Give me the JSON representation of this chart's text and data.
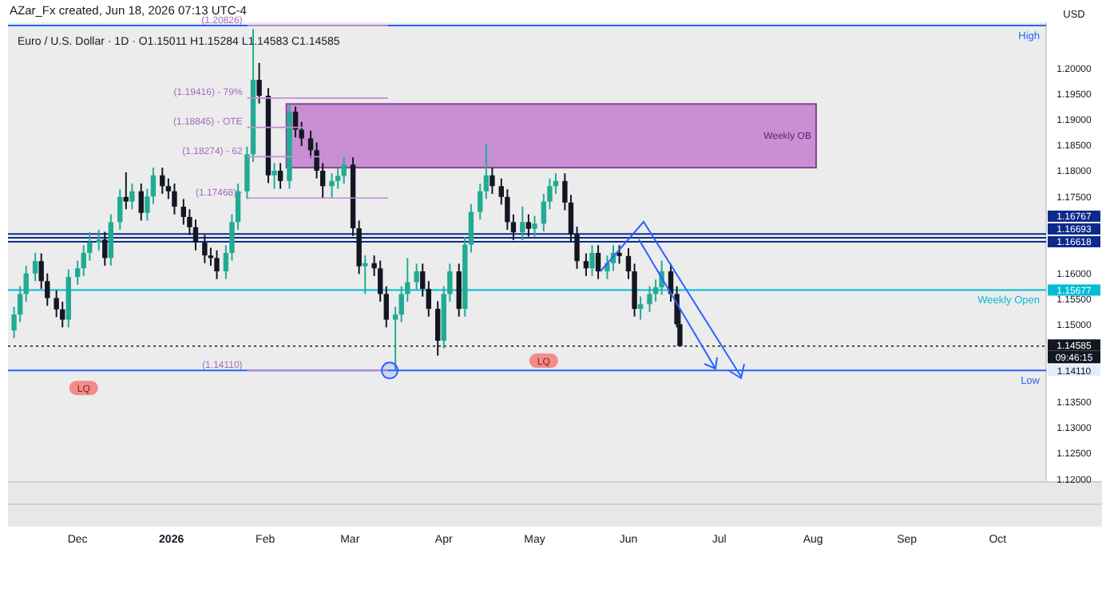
{
  "chart_data": {
    "type": "candlestick",
    "title": "Euro / U.S. Dollar · 1D · O1.15011 H1.15284 L1.14583 C1.14585",
    "subtitle": "AZar_Fx created, Jun 18, 2026 07:13 UTC-4",
    "ylabel": "USD",
    "colors": [
      "#22ab94",
      "#22ab94",
      "#22ab94",
      "#22ab94",
      "#131722",
      "#131722",
      "#131722",
      "#131722",
      "#22ab94",
      "#22ab94",
      "#22ab94",
      "#22ab94",
      "#22ab94",
      "#131722",
      "#22ab94",
      "#22ab94",
      "#131722",
      "#22ab94",
      "#131722",
      "#22ab94",
      "#22ab94",
      "#131722",
      "#131722",
      "#131722",
      "#131722",
      "#131722",
      "#131722",
      "#131722",
      "#131722",
      "#131722",
      "#22ab94",
      "#22ab94",
      "#22ab94",
      "#22ab94",
      "#22ab94",
      "#131722",
      "#131722",
      "#22ab94",
      "#131722",
      "#22ab94",
      "#131722",
      "#131722",
      "#131722",
      "#131722",
      "#131722",
      "#22ab94",
      "#22ab94",
      "#22ab94",
      "#131722",
      "#131722",
      "#22ab94",
      "#131722",
      "#131722",
      "#131722",
      "#22ab94",
      "#22ab94",
      "#22ab94",
      "#22ab94",
      "#131722",
      "#131722",
      "#131722",
      "#22ab94",
      "#22ab94",
      "#131722",
      "#22ab94",
      "#22ab94",
      "#22ab94",
      "#22ab94",
      "#131722",
      "#131722",
      "#131722",
      "#131722",
      "#22ab94",
      "#131722",
      "#22ab94",
      "#22ab94",
      "#22ab94",
      "#22ab94",
      "#131722",
      "#131722",
      "#131722",
      "#131722",
      "#22ab94",
      "#131722",
      "#22ab94",
      "#22ab94",
      "#131722",
      "#131722",
      "#131722",
      "#22ab94",
      "#22ab94",
      "#22ab94",
      "#22ab94",
      "#131722",
      "#131722",
      "#131722"
    ],
    "x": [
      "2025-11-10",
      "2025-11-12",
      "2025-11-14",
      "2025-11-17",
      "2025-11-19",
      "2025-11-21",
      "2025-11-24",
      "2025-11-26",
      "2025-11-28",
      "2025-12-01",
      "2025-12-03",
      "2025-12-05",
      "2025-12-08",
      "2025-12-10",
      "2025-12-12",
      "2025-12-15",
      "2025-12-17",
      "2025-12-19",
      "2025-12-22",
      "2025-12-24",
      "2025-12-26",
      "2025-12-29",
      "2025-12-31",
      "2026-01-02",
      "2026-01-05",
      "2026-01-07",
      "2026-01-09",
      "2026-01-12",
      "2026-01-14",
      "2026-01-16",
      "2026-01-19",
      "2026-01-21",
      "2026-01-23",
      "2026-01-26",
      "2026-01-28",
      "2026-01-30",
      "2026-02-02",
      "2026-02-04",
      "2026-02-06",
      "2026-02-09",
      "2026-02-11",
      "2026-02-13",
      "2026-02-16",
      "2026-02-18",
      "2026-02-20",
      "2026-02-23",
      "2026-02-25",
      "2026-02-27",
      "2026-03-02",
      "2026-03-04",
      "2026-03-06",
      "2026-03-09",
      "2026-03-11",
      "2026-03-13",
      "2026-03-16",
      "2026-03-18",
      "2026-03-20",
      "2026-03-23",
      "2026-03-25",
      "2026-03-27",
      "2026-03-30",
      "2026-04-01",
      "2026-04-03",
      "2026-04-06",
      "2026-04-08",
      "2026-04-10",
      "2026-04-13",
      "2026-04-15",
      "2026-04-17",
      "2026-04-20",
      "2026-04-22",
      "2026-04-24",
      "2026-04-27",
      "2026-04-29",
      "2026-05-01",
      "2026-05-04",
      "2026-05-06",
      "2026-05-08",
      "2026-05-11",
      "2026-05-13",
      "2026-05-15",
      "2026-05-18",
      "2026-05-20",
      "2026-05-22",
      "2026-05-25",
      "2026-05-27",
      "2026-05-29",
      "2026-06-01",
      "2026-06-03",
      "2026-06-05",
      "2026-06-08",
      "2026-06-10",
      "2026-06-12",
      "2026-06-15",
      "2026-06-17",
      "2026-06-18"
    ],
    "ohlc": [
      [
        1.1489,
        1.1535,
        1.1474,
        1.152
      ],
      [
        1.152,
        1.1575,
        1.1505,
        1.156
      ],
      [
        1.156,
        1.1615,
        1.1545,
        1.16
      ],
      [
        1.16,
        1.164,
        1.1585,
        1.1624
      ],
      [
        1.1624,
        1.1639,
        1.157,
        1.1585
      ],
      [
        1.1585,
        1.16,
        1.1537,
        1.1552
      ],
      [
        1.1552,
        1.1567,
        1.1515,
        1.153
      ],
      [
        1.153,
        1.1545,
        1.1495,
        1.151
      ],
      [
        1.151,
        1.1608,
        1.1495,
        1.1593
      ],
      [
        1.1593,
        1.1625,
        1.1578,
        1.161
      ],
      [
        1.161,
        1.1655,
        1.1595,
        1.164
      ],
      [
        1.164,
        1.168,
        1.1625,
        1.166
      ],
      [
        1.166,
        1.1685,
        1.1645,
        1.1666
      ],
      [
        1.1666,
        1.1681,
        1.1615,
        1.163
      ],
      [
        1.163,
        1.1715,
        1.1615,
        1.17
      ],
      [
        1.17,
        1.1764,
        1.1685,
        1.1749
      ],
      [
        1.1749,
        1.1797,
        1.1725,
        1.174
      ],
      [
        1.174,
        1.1775,
        1.1725,
        1.176
      ],
      [
        1.176,
        1.1775,
        1.1703,
        1.1718
      ],
      [
        1.1718,
        1.1765,
        1.1703,
        1.175
      ],
      [
        1.175,
        1.1806,
        1.1735,
        1.1791
      ],
      [
        1.1791,
        1.1806,
        1.1755,
        1.177
      ],
      [
        1.177,
        1.1785,
        1.1745,
        1.176
      ],
      [
        1.176,
        1.1775,
        1.1715,
        1.173
      ],
      [
        1.173,
        1.1745,
        1.1695,
        1.171
      ],
      [
        1.171,
        1.1725,
        1.1675,
        1.169
      ],
      [
        1.169,
        1.1705,
        1.1645,
        1.166
      ],
      [
        1.166,
        1.1675,
        1.162,
        1.1635
      ],
      [
        1.1635,
        1.165,
        1.1615,
        1.163
      ],
      [
        1.163,
        1.1645,
        1.1589,
        1.1604
      ],
      [
        1.1604,
        1.1655,
        1.1589,
        1.164
      ],
      [
        1.164,
        1.1715,
        1.1625,
        1.17
      ],
      [
        1.17,
        1.1775,
        1.1685,
        1.176
      ],
      [
        1.176,
        1.1847,
        1.1745,
        1.1832
      ],
      [
        1.1832,
        1.2076,
        1.1817,
        1.1977
      ],
      [
        1.1977,
        1.201,
        1.1931,
        1.1946
      ],
      [
        1.1946,
        1.1961,
        1.1776,
        1.1791
      ],
      [
        1.1791,
        1.1815,
        1.1765,
        1.18
      ],
      [
        1.18,
        1.1815,
        1.1765,
        1.178
      ],
      [
        1.178,
        1.193,
        1.1765,
        1.1915
      ],
      [
        1.1915,
        1.1925,
        1.1865,
        1.188
      ],
      [
        1.188,
        1.1895,
        1.1848,
        1.1863
      ],
      [
        1.1863,
        1.1878,
        1.1825,
        1.184
      ],
      [
        1.184,
        1.1855,
        1.1785,
        1.18
      ],
      [
        1.18,
        1.1815,
        1.1747,
        1.177
      ],
      [
        1.177,
        1.1795,
        1.1747,
        1.178
      ],
      [
        1.178,
        1.1805,
        1.1765,
        1.179
      ],
      [
        1.179,
        1.1827,
        1.1775,
        1.1812
      ],
      [
        1.1812,
        1.1827,
        1.1673,
        1.1688
      ],
      [
        1.1688,
        1.1703,
        1.1599,
        1.1614
      ],
      [
        1.1614,
        1.1635,
        1.156,
        1.162
      ],
      [
        1.162,
        1.1635,
        1.1595,
        1.161
      ],
      [
        1.161,
        1.1625,
        1.1545,
        1.156
      ],
      [
        1.156,
        1.1575,
        1.1495,
        1.151
      ],
      [
        1.151,
        1.1535,
        1.1411,
        1.152
      ],
      [
        1.152,
        1.1575,
        1.1505,
        1.156
      ],
      [
        1.156,
        1.163,
        1.1545,
        1.1583
      ],
      [
        1.1583,
        1.1619,
        1.1568,
        1.1604
      ],
      [
        1.1604,
        1.1619,
        1.1555,
        1.157
      ],
      [
        1.157,
        1.1585,
        1.1516,
        1.1531
      ],
      [
        1.1531,
        1.1546,
        1.144,
        1.1469
      ],
      [
        1.1469,
        1.1575,
        1.1454,
        1.156
      ],
      [
        1.156,
        1.1619,
        1.1545,
        1.1604
      ],
      [
        1.1604,
        1.1619,
        1.1516,
        1.1531
      ],
      [
        1.1531,
        1.1671,
        1.1516,
        1.1656
      ],
      [
        1.1656,
        1.1735,
        1.1641,
        1.172
      ],
      [
        1.172,
        1.1775,
        1.1705,
        1.176
      ],
      [
        1.176,
        1.1853,
        1.1745,
        1.1791
      ],
      [
        1.1791,
        1.1806,
        1.1755,
        1.177
      ],
      [
        1.177,
        1.1785,
        1.1734,
        1.1749
      ],
      [
        1.1749,
        1.1764,
        1.1685,
        1.17
      ],
      [
        1.17,
        1.1715,
        1.1665,
        1.168
      ],
      [
        1.168,
        1.173,
        1.1665,
        1.17
      ],
      [
        1.17,
        1.1715,
        1.1672,
        1.1687
      ],
      [
        1.1687,
        1.1712,
        1.1672,
        1.1697
      ],
      [
        1.1697,
        1.1755,
        1.1682,
        1.174
      ],
      [
        1.174,
        1.1785,
        1.1725,
        1.177
      ],
      [
        1.177,
        1.1795,
        1.1755,
        1.178
      ],
      [
        1.178,
        1.1795,
        1.1723,
        1.1738
      ],
      [
        1.1738,
        1.1753,
        1.1661,
        1.1676
      ],
      [
        1.1676,
        1.1691,
        1.1609,
        1.1624
      ],
      [
        1.1624,
        1.1639,
        1.1595,
        1.161
      ],
      [
        1.161,
        1.1655,
        1.1595,
        1.164
      ],
      [
        1.164,
        1.1655,
        1.1589,
        1.1604
      ],
      [
        1.1604,
        1.1635,
        1.1589,
        1.162
      ],
      [
        1.162,
        1.1655,
        1.1605,
        1.164
      ],
      [
        1.164,
        1.1655,
        1.1619,
        1.1634
      ],
      [
        1.1634,
        1.1649,
        1.1589,
        1.1604
      ],
      [
        1.1604,
        1.1619,
        1.1516,
        1.1531
      ],
      [
        1.1531,
        1.1555,
        1.151,
        1.154
      ],
      [
        1.154,
        1.1575,
        1.1525,
        1.156
      ],
      [
        1.156,
        1.1588,
        1.1545,
        1.1573
      ],
      [
        1.1573,
        1.1625,
        1.1558,
        1.1604
      ],
      [
        1.1604,
        1.1619,
        1.1545,
        1.156
      ],
      [
        1.156,
        1.1575,
        1.1495,
        1.1501
      ],
      [
        1.15011,
        1.15284,
        1.14583,
        1.14585
      ]
    ],
    "xlim": [
      "2025-11-08",
      "2026-10-17"
    ],
    "xticks": [
      {
        "value": "2025-12-01",
        "label": "Dec"
      },
      {
        "value": "2026-01-01",
        "label": "2026"
      },
      {
        "value": "2026-02-01",
        "label": "Feb"
      },
      {
        "value": "2026-03-01",
        "label": "Mar"
      },
      {
        "value": "2026-04-01",
        "label": "Apr"
      },
      {
        "value": "2026-05-01",
        "label": "May"
      },
      {
        "value": "2026-06-01",
        "label": "Jun"
      },
      {
        "value": "2026-07-01",
        "label": "Jul"
      },
      {
        "value": "2026-08-01",
        "label": "Aug"
      },
      {
        "value": "2026-09-01",
        "label": "Sep"
      },
      {
        "value": "2026-10-01",
        "label": "Oct"
      }
    ],
    "ylim": [
      1.1194,
      1.2089
    ],
    "yticks": [
      {
        "value": 1.12,
        "label": "1.12000"
      },
      {
        "value": 1.125,
        "label": "1.12500"
      },
      {
        "value": 1.13,
        "label": "1.13000"
      },
      {
        "value": 1.135,
        "label": "1.13500"
      },
      {
        "value": 1.15,
        "label": "1.15000"
      },
      {
        "value": 1.155,
        "label": "1.15500"
      },
      {
        "value": 1.16,
        "label": "1.16000"
      },
      {
        "value": 1.175,
        "label": "1.17500"
      },
      {
        "value": 1.18,
        "label": "1.18000"
      },
      {
        "value": 1.185,
        "label": "1.18500"
      },
      {
        "value": 1.19,
        "label": "1.19000"
      },
      {
        "value": 1.195,
        "label": "1.19500"
      },
      {
        "value": 1.2,
        "label": "1.20000"
      }
    ],
    "bands": [
      {
        "axis": "y",
        "from": 1.1806,
        "to": 1.193,
        "label": "Weekly OB",
        "color": "#c586d0"
      }
    ],
    "ref_lines": [
      {
        "axis": "y",
        "value": 1.20826,
        "label": "High",
        "color": "#2962ff",
        "line_style": "solid"
      },
      {
        "axis": "y",
        "value": 1.16767,
        "label": "1.16767",
        "color": "#0d2a8a",
        "line_style": "solid"
      },
      {
        "axis": "y",
        "value": 1.16693,
        "label": "1.16693",
        "color": "#0d2a8a",
        "line_style": "solid"
      },
      {
        "axis": "y",
        "value": 1.16618,
        "label": "1.16618",
        "color": "#0d2a8a",
        "line_style": "solid"
      },
      {
        "axis": "y",
        "value": 1.15677,
        "label": "1.15677",
        "color": "#00bcd4",
        "line_style": "solid"
      },
      {
        "axis": "y",
        "value": 1.1411,
        "label": "1.14110",
        "color": "#2962ff",
        "line_style": "solid"
      },
      {
        "axis": "y",
        "value": 1.14585,
        "label": "1.14585",
        "color": "#131722",
        "line_style": "dotted"
      }
    ],
    "annotations": [
      {
        "text": "(1.20826)",
        "x": "2026-01-25",
        "y": 1.20826
      },
      {
        "text": "(1.19416) - 79%",
        "x": "2026-01-25",
        "y": 1.19416
      },
      {
        "text": "(1.18845) - OTE",
        "x": "2026-01-25",
        "y": 1.18845
      },
      {
        "text": "(1.18274) - 62",
        "x": "2026-01-25",
        "y": 1.18274
      },
      {
        "text": "(1.17468) -",
        "x": "2026-01-25",
        "y": 1.17468
      },
      {
        "text": "(1.14110)",
        "x": "2026-01-25",
        "y": 1.1411
      },
      {
        "text": "LQ",
        "x": "2025-12-03",
        "y": 1.1377
      },
      {
        "text": "LQ",
        "x": "2026-05-04",
        "y": 1.143
      },
      {
        "text": "Weekly Open",
        "x": "2026-10-10",
        "y": 1.15677
      },
      {
        "text": "Low",
        "x": "2026-10-10",
        "y": 1.1411
      },
      "09:46:15"
    ]
  }
}
